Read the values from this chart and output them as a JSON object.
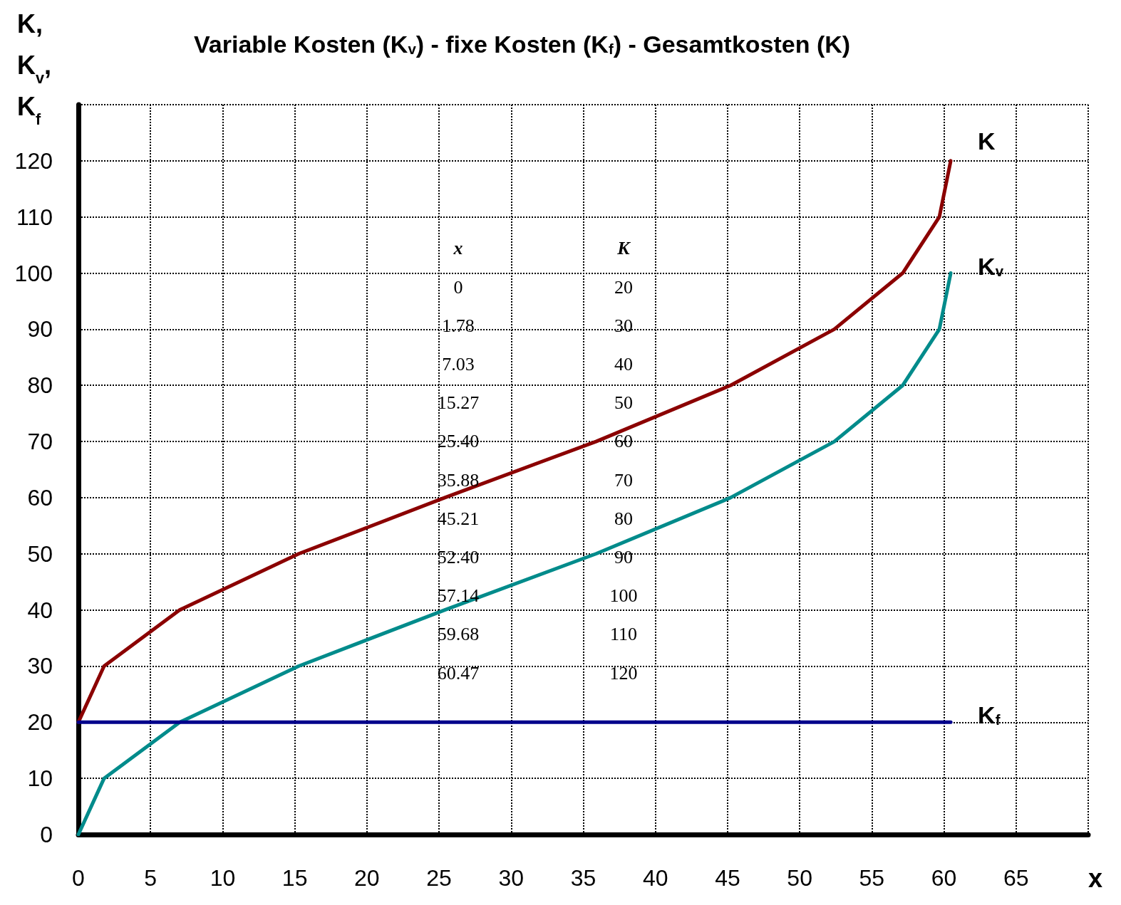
{
  "chart_data": {
    "type": "line",
    "title": "Variable Kosten (K$_{v}$) - fixe Kosten (K$_{f}$) - Gesamtkosten (K)",
    "xlabel": "x",
    "ylabel": "K,\nK$_{v}$,\nK$_{f}$",
    "series": [
      {
        "name": "K",
        "color": "#8b0000",
        "x": [
          0,
          1.78,
          7.03,
          15.27,
          25.4,
          35.88,
          45.21,
          52.4,
          57.14,
          59.68,
          60.47
        ],
        "values": [
          20,
          30,
          40,
          50,
          60,
          70,
          80,
          90,
          100,
          110,
          120
        ]
      },
      {
        "name": "K$_{v}$",
        "color": "#008b8b",
        "x": [
          0,
          1.78,
          7.03,
          15.27,
          25.4,
          35.88,
          45.21,
          52.4,
          57.14,
          59.68,
          60.47
        ],
        "values": [
          0,
          10,
          20,
          30,
          40,
          50,
          60,
          70,
          80,
          90,
          100
        ]
      },
      {
        "name": "K$_{f}$",
        "color": "#00008b",
        "x": [
          0,
          60.47
        ],
        "values": [
          20,
          20
        ]
      }
    ],
    "annotations": [
      "x",
      "K",
      "0",
      "20",
      "1.78",
      "30",
      "7.03",
      "40",
      "15.27",
      "50",
      "25.40",
      "60",
      "35.88",
      "70",
      "45.21",
      "80",
      "52.40",
      "90",
      "57.14",
      "100",
      "59.68",
      "110",
      "60.47",
      "120"
    ],
    "xlim": [
      0,
      70
    ],
    "xticks": [
      0,
      5,
      10,
      15,
      20,
      25,
      30,
      35,
      40,
      45,
      50,
      55,
      60,
      65,
      {
        "value": 70,
        "label": null
      }
    ],
    "ylim": [
      0,
      130
    ],
    "yticks": [
      0,
      10,
      20,
      30,
      40,
      50,
      60,
      70,
      80,
      90,
      100,
      110,
      120,
      {
        "value": 130,
        "label": null
      }
    ],
    "grid": true,
    "marker": "none",
    "line_style": "solid"
  }
}
